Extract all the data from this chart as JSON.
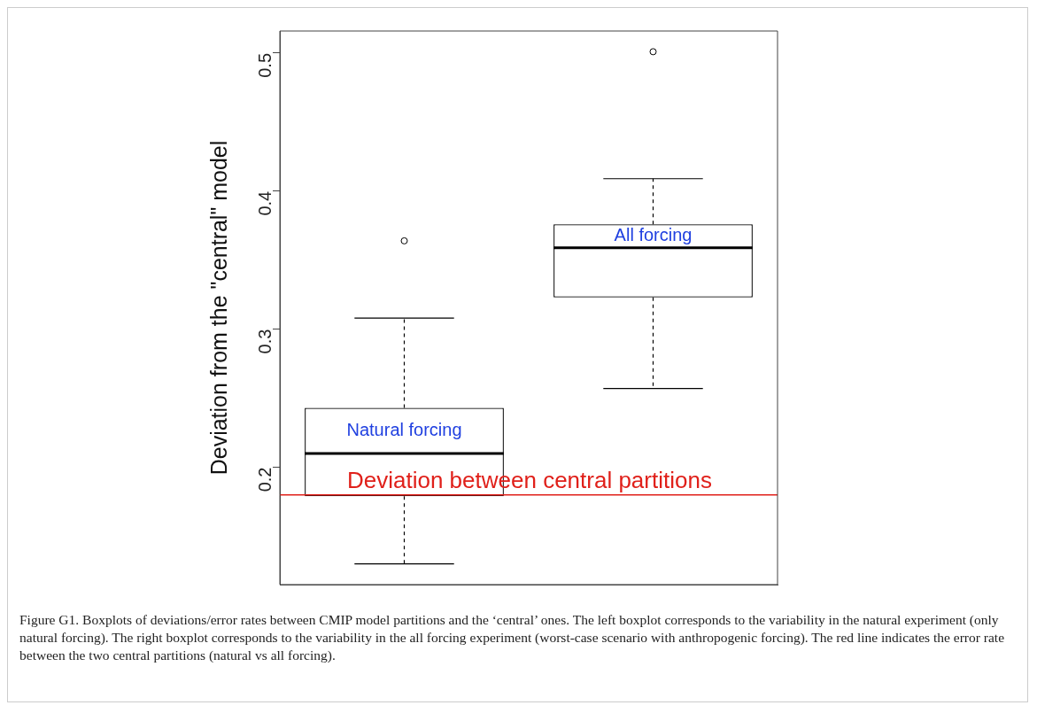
{
  "chart_data": {
    "type": "box",
    "ylabel": "Deviation from the \"central\" model",
    "categories": [
      null,
      null
    ],
    "color": "#000000",
    "boxes": [
      {
        "low": 0.13,
        "q1": 0.179,
        "median": 0.21,
        "q3": 0.243,
        "high": 0.308,
        "outliers": [
          0.364
        ]
      },
      {
        "low": 0.257,
        "q1": 0.323,
        "median": 0.359,
        "q3": 0.376,
        "high": 0.409,
        "outliers": [
          0.501
        ]
      }
    ],
    "ylim": [
      0.115,
      0.516
    ],
    "yticks": [
      0.2,
      0.3,
      0.4,
      0.5
    ],
    "tick_labels": "y",
    "grid": false,
    "legend": false,
    "ref_lines": [
      {
        "axis": "y",
        "value": 0.18,
        "label": "Deviation between central partitions",
        "color": "#e0201a"
      }
    ],
    "annotations": [
      "Natural forcing",
      "All forcing",
      "Figure G1. Boxplots of deviations/error rates between CMIP model partitions and the ‘central’ ones. The left boxplot corresponds to the variability in the natural experiment (only natural forcing). The right boxplot corresponds to the variability in the all forcing experiment (worst-case scenario with anthropogenic forcing). The red line indicates the error rate between the two central partitions (natural vs all forcing)."
    ]
  }
}
